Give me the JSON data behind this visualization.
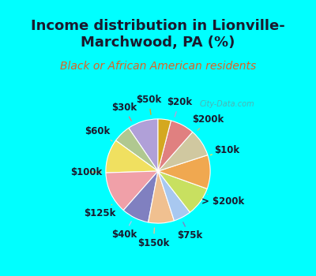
{
  "title": "Income distribution in Lionville-\nMarchwood, PA (%)",
  "subtitle": "Black or African American residents",
  "background_top": "#00ffff",
  "background_chart": "#e8f5ee",
  "labels": [
    "$20k",
    "$200k",
    "$10k",
    "> $200k",
    "$75k",
    "$150k",
    "$40k",
    "$125k",
    "$100k",
    "$60k",
    "$30k",
    "$50k"
  ],
  "sizes": [
    9.5,
    5.5,
    10.5,
    13.0,
    8.5,
    8.0,
    5.5,
    9.0,
    10.5,
    8.5,
    7.5,
    4.0
  ],
  "colors": [
    "#b0a0d8",
    "#b0c890",
    "#f0e060",
    "#f0a0a8",
    "#8080c0",
    "#f0c090",
    "#a8c8f0",
    "#c8e060",
    "#f0a850",
    "#d0c8a0",
    "#e08080",
    "#d4a820"
  ],
  "watermark": "City-Data.com",
  "label_fontsize": 8.5,
  "title_fontsize": 13,
  "subtitle_fontsize": 10,
  "startangle": 90
}
